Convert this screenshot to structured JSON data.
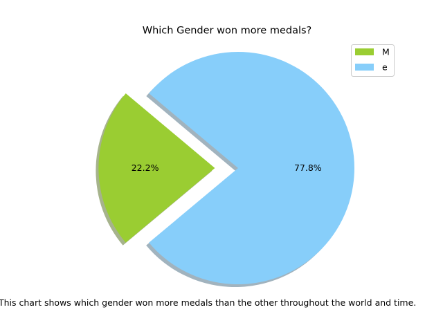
{
  "chart_data": {
    "type": "pie",
    "title": "Which Gender won more medals?",
    "caption": "This chart shows which gender won more medals than the other throughout the world and time.",
    "labels": [
      "M",
      "e"
    ],
    "values": [
      22.2,
      77.8
    ],
    "percent_labels": [
      "22.2%",
      "77.8%"
    ],
    "colors": [
      "#9acd32",
      "#87cefa"
    ],
    "explode": [
      0.2,
      0
    ],
    "shadow": true,
    "start_angle_degrees": 140,
    "legend_position": "upper right"
  }
}
